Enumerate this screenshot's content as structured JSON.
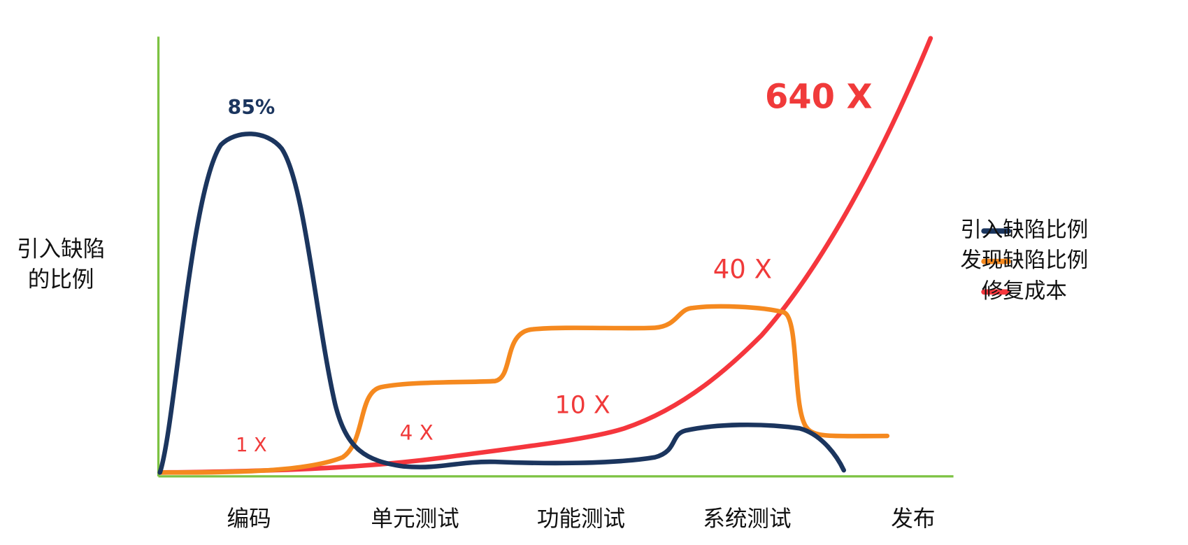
{
  "chart_data": {
    "type": "line",
    "y_label": [
      "引入缺陷",
      "的比例"
    ],
    "categories": [
      "编码",
      "单元测试",
      "功能测试",
      "系统测试",
      "发布"
    ],
    "series": [
      {
        "name": "引入缺陷比例",
        "color": "#1b355e"
      },
      {
        "name": "发现缺陷比例",
        "color": "#f5891f"
      },
      {
        "name": "修复成本",
        "color": "#f5363d"
      }
    ],
    "annotations": [
      "85%",
      "1 X",
      "4 X",
      "10 X",
      "40 X",
      "640 X"
    ]
  }
}
